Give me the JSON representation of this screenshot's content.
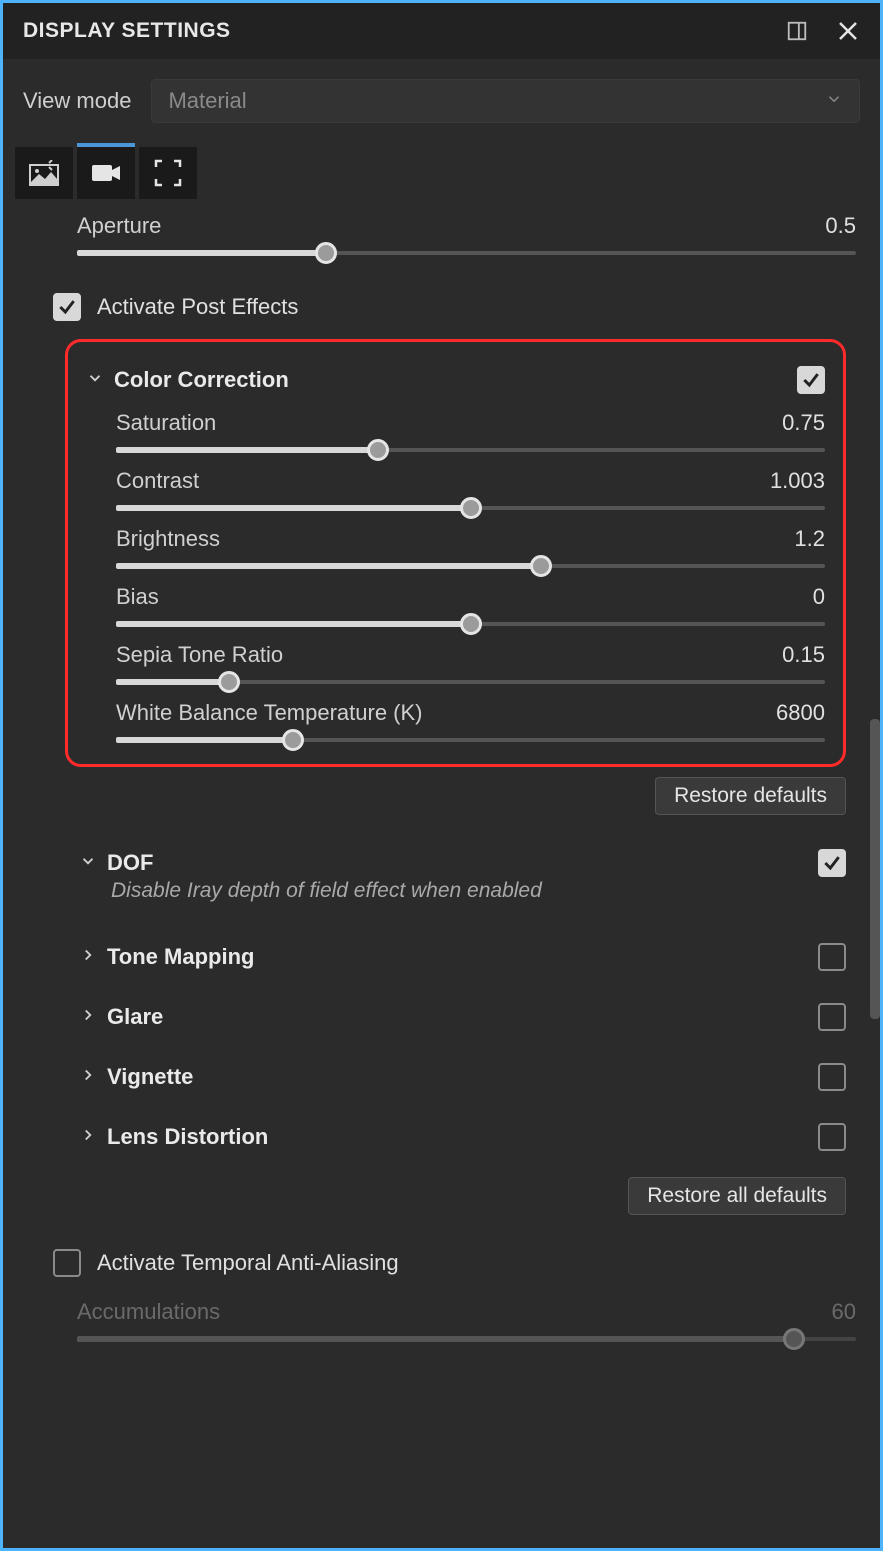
{
  "title": "DISPLAY SETTINGS",
  "viewmode": {
    "label": "View mode",
    "value": "Material"
  },
  "aperture": {
    "label": "Aperture",
    "value": "0.5",
    "pct": 32
  },
  "post_effects_label": "Activate Post Effects",
  "color_correction": {
    "title": "Color Correction",
    "sliders": {
      "saturation": {
        "label": "Saturation",
        "value": "0.75",
        "pct": 37
      },
      "contrast": {
        "label": "Contrast",
        "value": "1.003",
        "pct": 50
      },
      "brightness": {
        "label": "Brightness",
        "value": "1.2",
        "pct": 60
      },
      "bias": {
        "label": "Bias",
        "value": "0",
        "pct": 50
      },
      "sepia": {
        "label": "Sepia Tone Ratio",
        "value": "0.15",
        "pct": 16
      },
      "whitebal": {
        "label": "White Balance Temperature (K)",
        "value": "6800",
        "pct": 25
      }
    }
  },
  "restore_defaults": "Restore defaults",
  "restore_all_defaults": "Restore all defaults",
  "dof": {
    "title": "DOF",
    "desc": "Disable Iray depth of field effect when enabled"
  },
  "sections": {
    "tone": "Tone Mapping",
    "glare": "Glare",
    "vignette": "Vignette",
    "lens": "Lens Distortion"
  },
  "taa_label": "Activate Temporal Anti-Aliasing",
  "accumulations": {
    "label": "Accumulations",
    "value": "60",
    "pct": 92
  }
}
